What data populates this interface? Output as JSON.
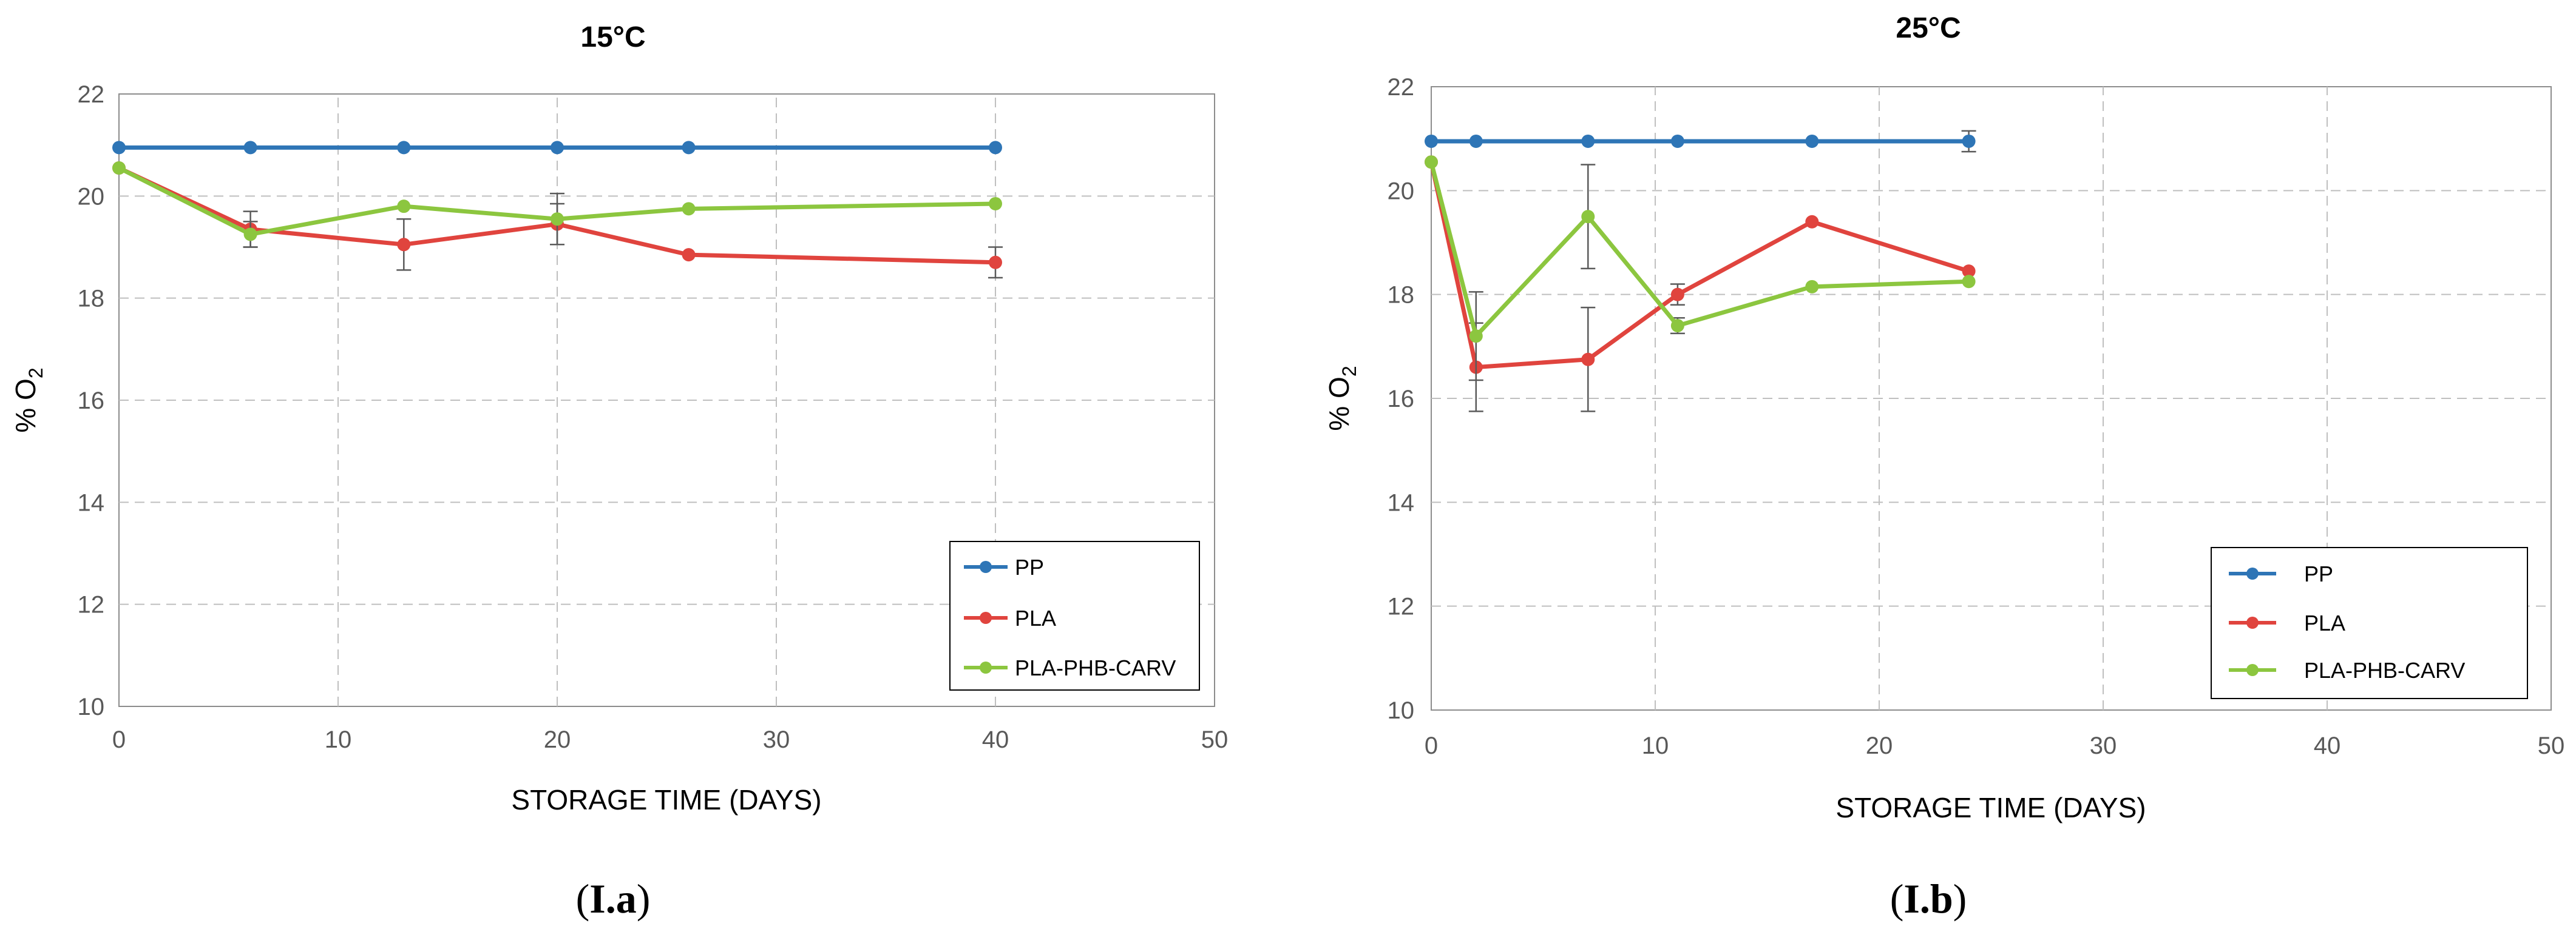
{
  "colors": {
    "PP": "#2E75B6",
    "PLA": "#E0443E",
    "PLA-PHB-CARV": "#8CC63F",
    "grid": "#BFBFBF",
    "axis": "#8C8C8C",
    "errorbar": "#5A5A5A"
  },
  "chart_data": [
    {
      "type": "line",
      "title": "15°C",
      "xlabel": "STORAGE TIME (DAYS)",
      "ylabel_main": "% O",
      "ylabel_sub": "2",
      "xlim": [
        0,
        50
      ],
      "ylim": [
        10,
        22
      ],
      "x_ticks": [
        0,
        10,
        20,
        30,
        40,
        50
      ],
      "y_ticks": [
        10,
        12,
        14,
        16,
        18,
        20,
        22
      ],
      "grid": true,
      "legend_position": "bottom-right",
      "caption_prefix": "(",
      "caption_bold": "I.a",
      "caption_suffix": ")",
      "series": [
        {
          "name": "PP",
          "x": [
            0,
            6,
            13,
            20,
            26,
            40
          ],
          "y": [
            20.95,
            20.95,
            20.95,
            20.95,
            20.95,
            20.95
          ],
          "err": [
            0,
            0,
            0,
            0,
            0,
            0
          ]
        },
        {
          "name": "PLA",
          "x": [
            0,
            6,
            13,
            20,
            26,
            40
          ],
          "y": [
            20.55,
            19.35,
            19.05,
            19.45,
            18.85,
            18.7
          ],
          "err": [
            0,
            0.35,
            0.5,
            0.4,
            0,
            0.3
          ]
        },
        {
          "name": "PLA-PHB-CARV",
          "x": [
            0,
            6,
            13,
            20,
            26,
            40
          ],
          "y": [
            20.55,
            19.25,
            19.8,
            19.55,
            19.75,
            19.85
          ],
          "err": [
            0,
            0.25,
            0,
            0.5,
            0,
            0
          ]
        }
      ]
    },
    {
      "type": "line",
      "title": "25°C",
      "xlabel": "STORAGE TIME (DAYS)",
      "ylabel_main": "% O",
      "ylabel_sub": "2",
      "xlim": [
        0,
        50
      ],
      "ylim": [
        10,
        22
      ],
      "x_ticks": [
        0,
        10,
        20,
        30,
        40,
        50
      ],
      "y_ticks": [
        10,
        12,
        14,
        16,
        18,
        20,
        22
      ],
      "grid": true,
      "legend_position": "bottom-right",
      "caption_prefix": "(",
      "caption_bold": "I.b",
      "caption_suffix": ")",
      "series": [
        {
          "name": "PP",
          "x": [
            0,
            2,
            7,
            11,
            17,
            24
          ],
          "y": [
            20.95,
            20.95,
            20.95,
            20.95,
            20.95,
            20.95
          ],
          "err": [
            0,
            0,
            0,
            0,
            0,
            0.2
          ]
        },
        {
          "name": "PLA",
          "x": [
            0,
            2,
            7,
            11,
            17,
            24
          ],
          "y": [
            20.55,
            16.6,
            16.75,
            18.0,
            19.4,
            18.45
          ],
          "err": [
            0,
            0.85,
            1.0,
            0.2,
            0,
            0
          ]
        },
        {
          "name": "PLA-PHB-CARV",
          "x": [
            0,
            2,
            7,
            11,
            17,
            24
          ],
          "y": [
            20.55,
            17.2,
            19.5,
            17.4,
            18.15,
            18.25
          ],
          "err": [
            0,
            0.85,
            1.0,
            0.15,
            0,
            0
          ]
        }
      ]
    }
  ]
}
